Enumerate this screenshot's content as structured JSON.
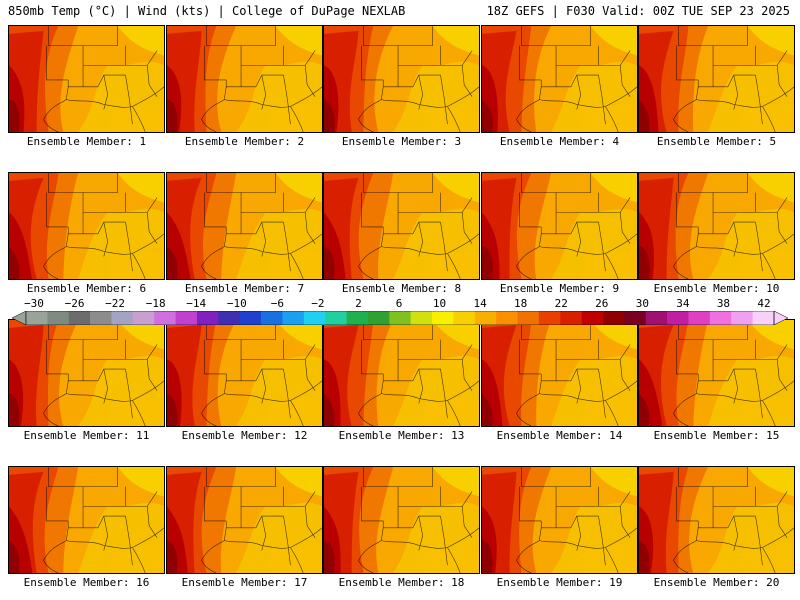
{
  "header": {
    "left_title": "850mb Temp (°C) | Wind (kts) | College of DuPage NEXLAB",
    "right_title": "18Z GEFS | F030 Valid: 00Z TUE SEP 23 2025"
  },
  "members": [
    {
      "label": "Ensemble Member: 1"
    },
    {
      "label": "Ensemble Member: 2"
    },
    {
      "label": "Ensemble Member: 3"
    },
    {
      "label": "Ensemble Member: 4"
    },
    {
      "label": "Ensemble Member: 5"
    },
    {
      "label": "Ensemble Member: 6"
    },
    {
      "label": "Ensemble Member: 7"
    },
    {
      "label": "Ensemble Member: 8"
    },
    {
      "label": "Ensemble Member: 9"
    },
    {
      "label": "Ensemble Member: 10"
    },
    {
      "label": "Ensemble Member: 11"
    },
    {
      "label": "Ensemble Member: 12"
    },
    {
      "label": "Ensemble Member: 13"
    },
    {
      "label": "Ensemble Member: 14"
    },
    {
      "label": "Ensemble Member: 15"
    },
    {
      "label": "Ensemble Member: 16"
    },
    {
      "label": "Ensemble Member: 17"
    },
    {
      "label": "Ensemble Member: 18"
    },
    {
      "label": "Ensemble Member: 19"
    },
    {
      "label": "Ensemble Member: 20"
    }
  ],
  "colorbar": {
    "tick_labels": [
      "−30",
      "−26",
      "−22",
      "−18",
      "−14",
      "−10",
      "−6",
      "−2",
      "2",
      "6",
      "10",
      "14",
      "18",
      "22",
      "26",
      "30",
      "34",
      "38",
      "42"
    ],
    "colors": [
      "#9aa39a",
      "#7f8a80",
      "#6c6c6c",
      "#8c8c8c",
      "#a3a3c2",
      "#c8a0d0",
      "#d070e0",
      "#c040d0",
      "#8020c0",
      "#4030b0",
      "#2040d0",
      "#1a70e0",
      "#1aa0f0",
      "#20d0f0",
      "#20d0a0",
      "#20b050",
      "#30a030",
      "#80c020",
      "#d0e010",
      "#f8f000",
      "#f8d000",
      "#f8b000",
      "#f89000",
      "#f07000",
      "#e84000",
      "#d82000",
      "#c00000",
      "#900000",
      "#780020",
      "#a01070",
      "#c020a0",
      "#e040c0",
      "#f070e0",
      "#f0a0f0",
      "#f8d0f8"
    ]
  }
}
